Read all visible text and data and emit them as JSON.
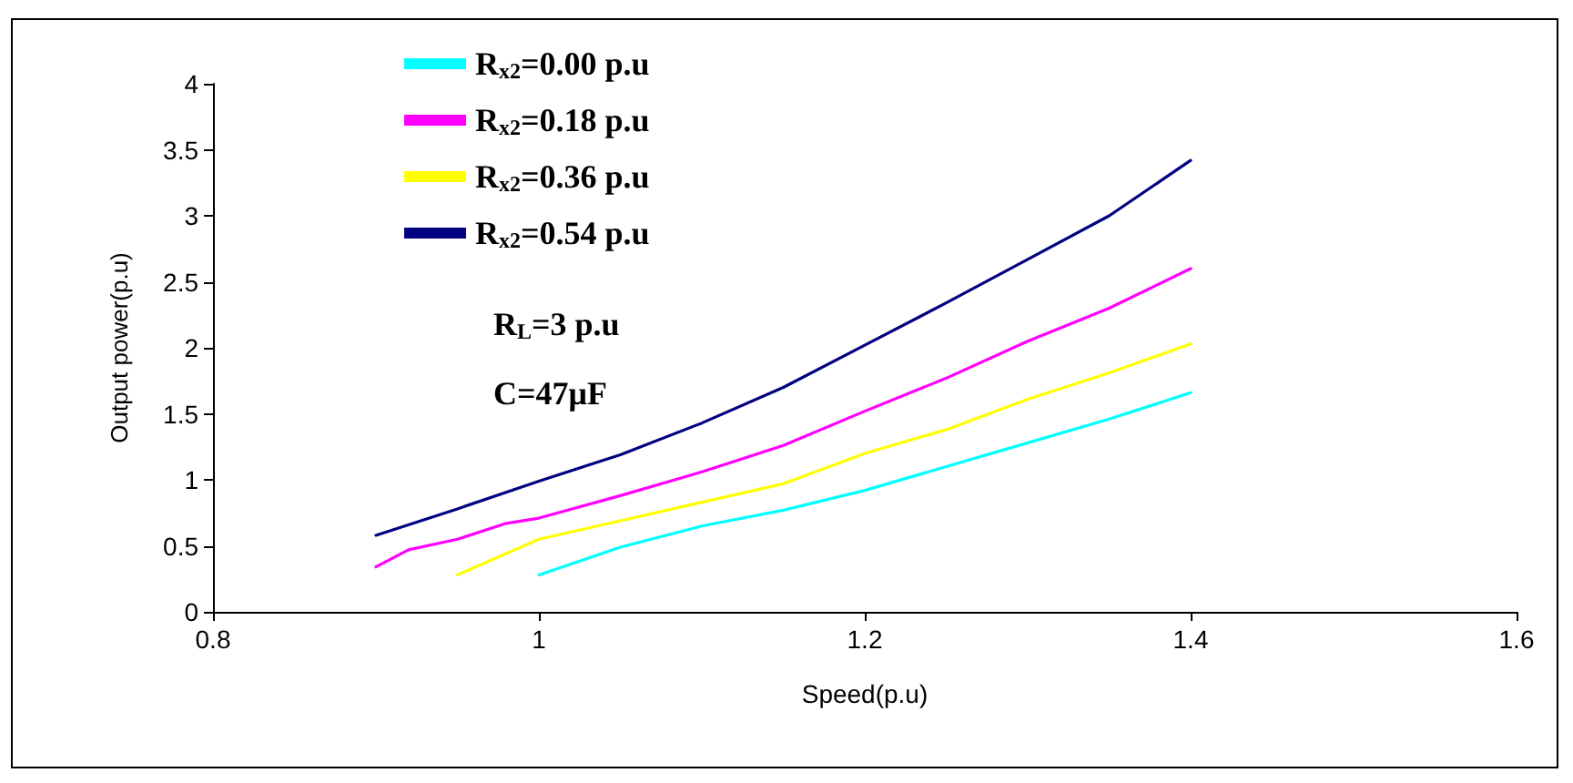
{
  "chart_data": {
    "type": "line",
    "xlabel": "Speed(p.u)",
    "ylabel": "Output power(p.u)",
    "xlim": [
      0.8,
      1.6
    ],
    "xticks": [
      0.8,
      1,
      1.2,
      1.4,
      1.6
    ],
    "ylim": [
      0,
      4
    ],
    "yticks": [
      0,
      0.5,
      1,
      1.5,
      2,
      2.5,
      3,
      3.5,
      4
    ],
    "grid": false,
    "legend": "top left",
    "marker": "none",
    "line_style": "solid",
    "annotations": [
      "R$_{L}$=3 p.u",
      "C=47μF"
    ],
    "series": [
      {
        "name": "R$_{x2}$=0.00 p.u",
        "color": "#00ffff",
        "x": [
          1.0,
          1.05,
          1.1,
          1.15,
          1.2,
          1.25,
          1.3,
          1.35,
          1.4
        ],
        "values": [
          0.28,
          0.49,
          0.65,
          0.77,
          0.92,
          1.1,
          1.28,
          1.46,
          1.66
        ]
      },
      {
        "name": "R$_{x2}$=0.18 p.u",
        "color": "#ff00ff",
        "x": [
          0.9,
          0.92,
          0.95,
          0.98,
          1.0,
          1.05,
          1.1,
          1.15,
          1.2,
          1.25,
          1.3,
          1.35,
          1.4
        ],
        "values": [
          0.34,
          0.47,
          0.55,
          0.67,
          0.71,
          0.88,
          1.06,
          1.26,
          1.52,
          1.77,
          2.05,
          2.3,
          2.6
        ]
      },
      {
        "name": "R$_{x2}$=0.36 p.u",
        "color": "#ffff00",
        "x": [
          0.95,
          1.0,
          1.05,
          1.1,
          1.15,
          1.2,
          1.25,
          1.3,
          1.35,
          1.4
        ],
        "values": [
          0.28,
          0.55,
          0.69,
          0.83,
          0.97,
          1.2,
          1.38,
          1.61,
          1.81,
          2.03
        ]
      },
      {
        "name": "R$_{x2}$=0.54 p.u",
        "color": "#000080",
        "x": [
          0.9,
          0.95,
          1.0,
          1.05,
          1.1,
          1.15,
          1.2,
          1.25,
          1.3,
          1.35,
          1.4
        ],
        "values": [
          0.58,
          0.78,
          0.99,
          1.19,
          1.43,
          1.7,
          2.02,
          2.34,
          2.67,
          3.0,
          3.42
        ]
      }
    ]
  }
}
